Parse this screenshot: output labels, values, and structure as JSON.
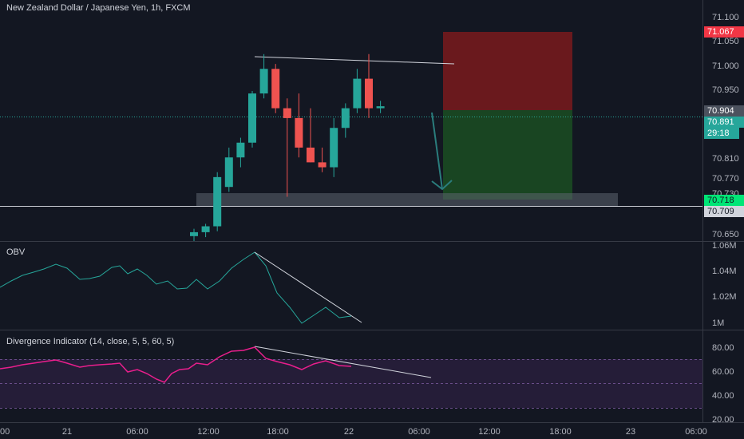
{
  "header": {
    "symbol_title": "New Zealand Dollar / Japanese Yen, 1h, FXCM"
  },
  "panes": {
    "obv_title": "OBV",
    "divergence_title": "Divergence Indicator (14, close, 5, 5, 60, 5)"
  },
  "price_axis": {
    "ticks": [
      "71.100",
      "71.050",
      "71.000",
      "70.950",
      "70.904",
      "70.891",
      "29:18",
      "70.810",
      "70.770",
      "70.718",
      "70.709",
      "70.650"
    ],
    "tags": {
      "stop": "71.067",
      "current_close": "70.904",
      "last_price": "70.891",
      "countdown": "29:18",
      "target": "70.718",
      "support": "70.709",
      "hidden": "70.730"
    }
  },
  "obv_axis": {
    "ticks": [
      "1.06M",
      "1.04M",
      "1.02M",
      "1M"
    ]
  },
  "osc_axis": {
    "ticks": [
      "80.00",
      "60.00",
      "40.00",
      "20.00"
    ]
  },
  "time_axis": {
    "ticks": [
      "00",
      "21",
      "06:00",
      "12:00",
      "18:00",
      "22",
      "06:00",
      "12:00",
      "18:00",
      "23",
      "06:00"
    ]
  },
  "colors": {
    "bg": "#131722",
    "bull": "#26a69a",
    "bear": "#ef5350",
    "stop_zone": "#8b1a1a",
    "target_zone": "#1b5e20",
    "osc_line": "#e91e8c",
    "obv_line": "#26a69a",
    "price_line": "#26a69a",
    "grid": "#1e222d"
  },
  "chart_data": {
    "type": "candlestick",
    "timeframe": "1h",
    "x_labels": [
      "21",
      "06:00",
      "12:00",
      "18:00",
      "22",
      "06:00",
      "12:00",
      "18:00",
      "23"
    ],
    "candles": [
      {
        "o": 70.64,
        "h": 70.655,
        "l": 70.63,
        "c": 70.648,
        "dir": "up"
      },
      {
        "o": 70.648,
        "h": 70.665,
        "l": 70.638,
        "c": 70.66,
        "dir": "up"
      },
      {
        "o": 70.66,
        "h": 70.77,
        "l": 70.65,
        "c": 70.76,
        "dir": "up"
      },
      {
        "o": 70.74,
        "h": 70.82,
        "l": 70.73,
        "c": 70.8,
        "dir": "up"
      },
      {
        "o": 70.8,
        "h": 70.84,
        "l": 70.78,
        "c": 70.83,
        "dir": "up"
      },
      {
        "o": 70.83,
        "h": 70.935,
        "l": 70.82,
        "c": 70.93,
        "dir": "up"
      },
      {
        "o": 70.93,
        "h": 71.01,
        "l": 70.92,
        "c": 70.98,
        "dir": "up"
      },
      {
        "o": 70.98,
        "h": 70.99,
        "l": 70.89,
        "c": 70.9,
        "dir": "down"
      },
      {
        "o": 70.9,
        "h": 70.92,
        "l": 70.72,
        "c": 70.88,
        "dir": "down"
      },
      {
        "o": 70.88,
        "h": 70.93,
        "l": 70.8,
        "c": 70.82,
        "dir": "down"
      },
      {
        "o": 70.82,
        "h": 70.9,
        "l": 70.79,
        "c": 70.79,
        "dir": "down"
      },
      {
        "o": 70.79,
        "h": 70.82,
        "l": 70.77,
        "c": 70.78,
        "dir": "down"
      },
      {
        "o": 70.78,
        "h": 70.88,
        "l": 70.76,
        "c": 70.86,
        "dir": "up"
      },
      {
        "o": 70.86,
        "h": 70.91,
        "l": 70.84,
        "c": 70.9,
        "dir": "up"
      },
      {
        "o": 70.9,
        "h": 70.98,
        "l": 70.89,
        "c": 70.96,
        "dir": "up"
      },
      {
        "o": 70.96,
        "h": 71.01,
        "l": 70.88,
        "c": 70.9,
        "dir": "down"
      },
      {
        "o": 70.9,
        "h": 70.915,
        "l": 70.89,
        "c": 70.904,
        "dir": "up"
      }
    ],
    "levels": {
      "stop": 71.067,
      "entry": 70.904,
      "target": 70.718,
      "support": 70.709
    },
    "price_range": [
      70.63,
      71.12
    ],
    "obv_range": [
      1000000,
      1060000
    ],
    "osc_range": [
      20,
      80
    ]
  }
}
